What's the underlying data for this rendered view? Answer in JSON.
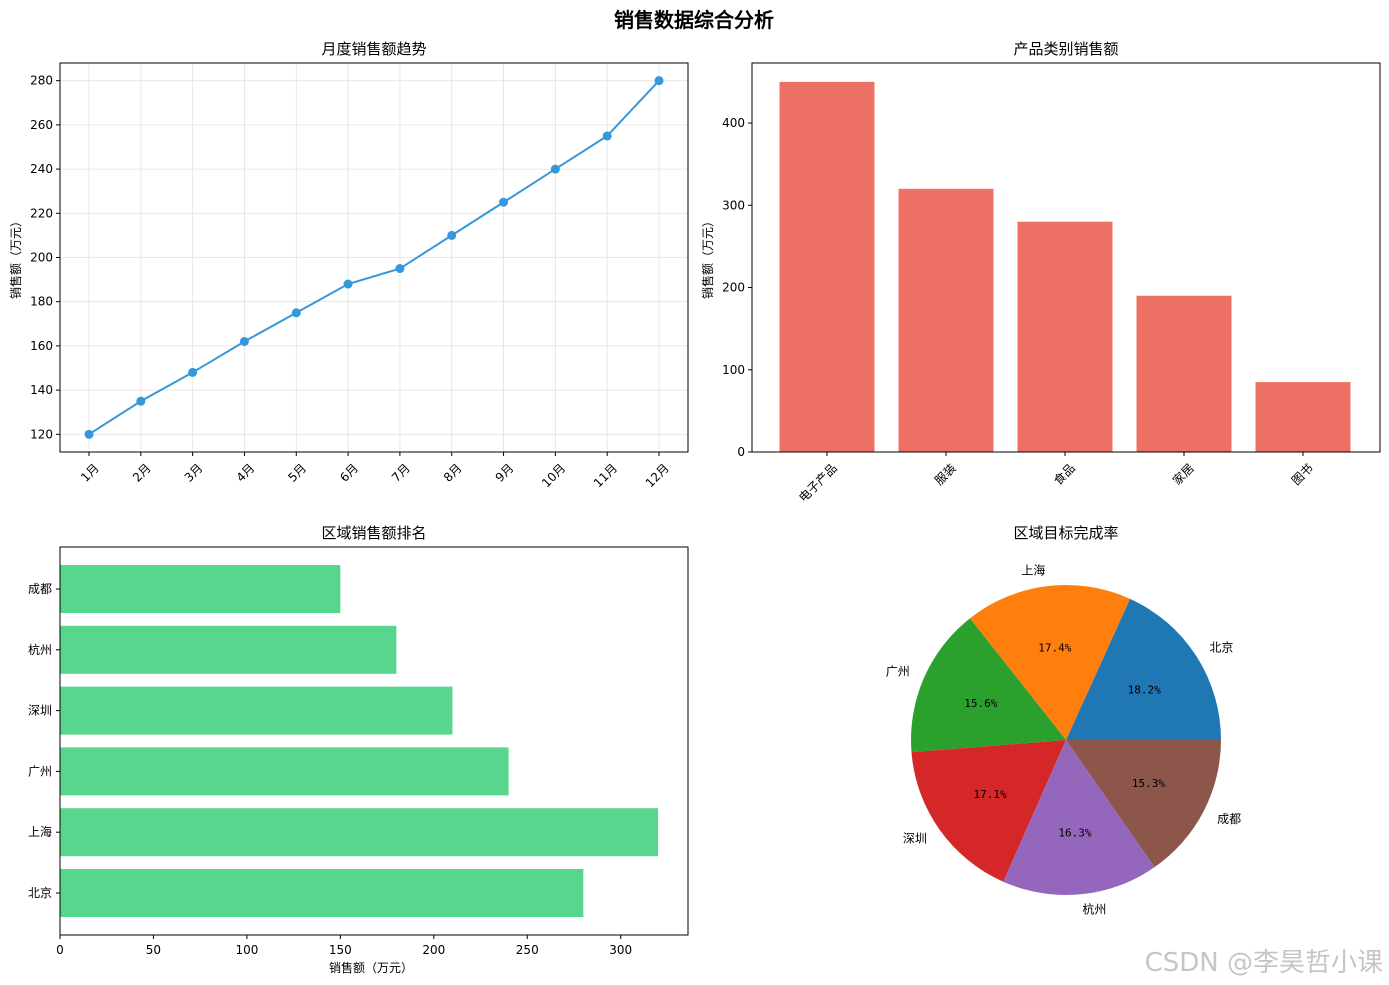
{
  "figure": {
    "title": "销售数据综合分析"
  },
  "watermark": "CSDN @李昊哲小课",
  "chart_data": [
    {
      "type": "line",
      "title": "月度销售额趋势",
      "xlabel": "",
      "ylabel": "销售额（万元）",
      "x": [
        "1月",
        "2月",
        "3月",
        "4月",
        "5月",
        "6月",
        "7月",
        "8月",
        "9月",
        "10月",
        "11月",
        "12月"
      ],
      "values": [
        120,
        135,
        148,
        162,
        175,
        188,
        195,
        210,
        225,
        240,
        255,
        280
      ],
      "ylim": [
        112,
        288
      ],
      "yticks": [
        120,
        140,
        160,
        180,
        200,
        220,
        240,
        260,
        280
      ],
      "grid": true,
      "color": "#3498db"
    },
    {
      "type": "bar",
      "title": "产品类别销售额",
      "xlabel": "",
      "ylabel": "销售额（万元）",
      "categories": [
        "电子产品",
        "服装",
        "食品",
        "家居",
        "图书"
      ],
      "values": [
        450,
        320,
        280,
        190,
        85
      ],
      "ylim": [
        0,
        473
      ],
      "yticks": [
        0,
        100,
        200,
        300,
        400
      ],
      "grid": false,
      "color": "#e74c3c"
    },
    {
      "type": "bar",
      "orientation": "horizontal",
      "title": "区域销售额排名",
      "xlabel": "销售额（万元）",
      "ylabel": "",
      "categories": [
        "北京",
        "上海",
        "广州",
        "深圳",
        "杭州",
        "成都"
      ],
      "values": [
        280,
        320,
        240,
        210,
        180,
        150
      ],
      "xlim": [
        0,
        336
      ],
      "xticks": [
        0,
        50,
        100,
        150,
        200,
        250,
        300
      ],
      "grid": false,
      "color": "#2ecc71"
    },
    {
      "type": "pie",
      "title": "区域目标完成率",
      "labels": [
        "北京",
        "上海",
        "广州",
        "深圳",
        "杭州",
        "成都"
      ],
      "percentages": [
        18.2,
        17.4,
        15.6,
        17.1,
        16.3,
        15.3
      ],
      "percent_labels": [
        "18.2%",
        "17.4%",
        "15.6%",
        "17.1%",
        "16.3%",
        "15.3%"
      ],
      "colors": [
        "#1f77b4",
        "#ff7f0e",
        "#2ca02c",
        "#d62728",
        "#9467bd",
        "#8c564b"
      ]
    }
  ]
}
